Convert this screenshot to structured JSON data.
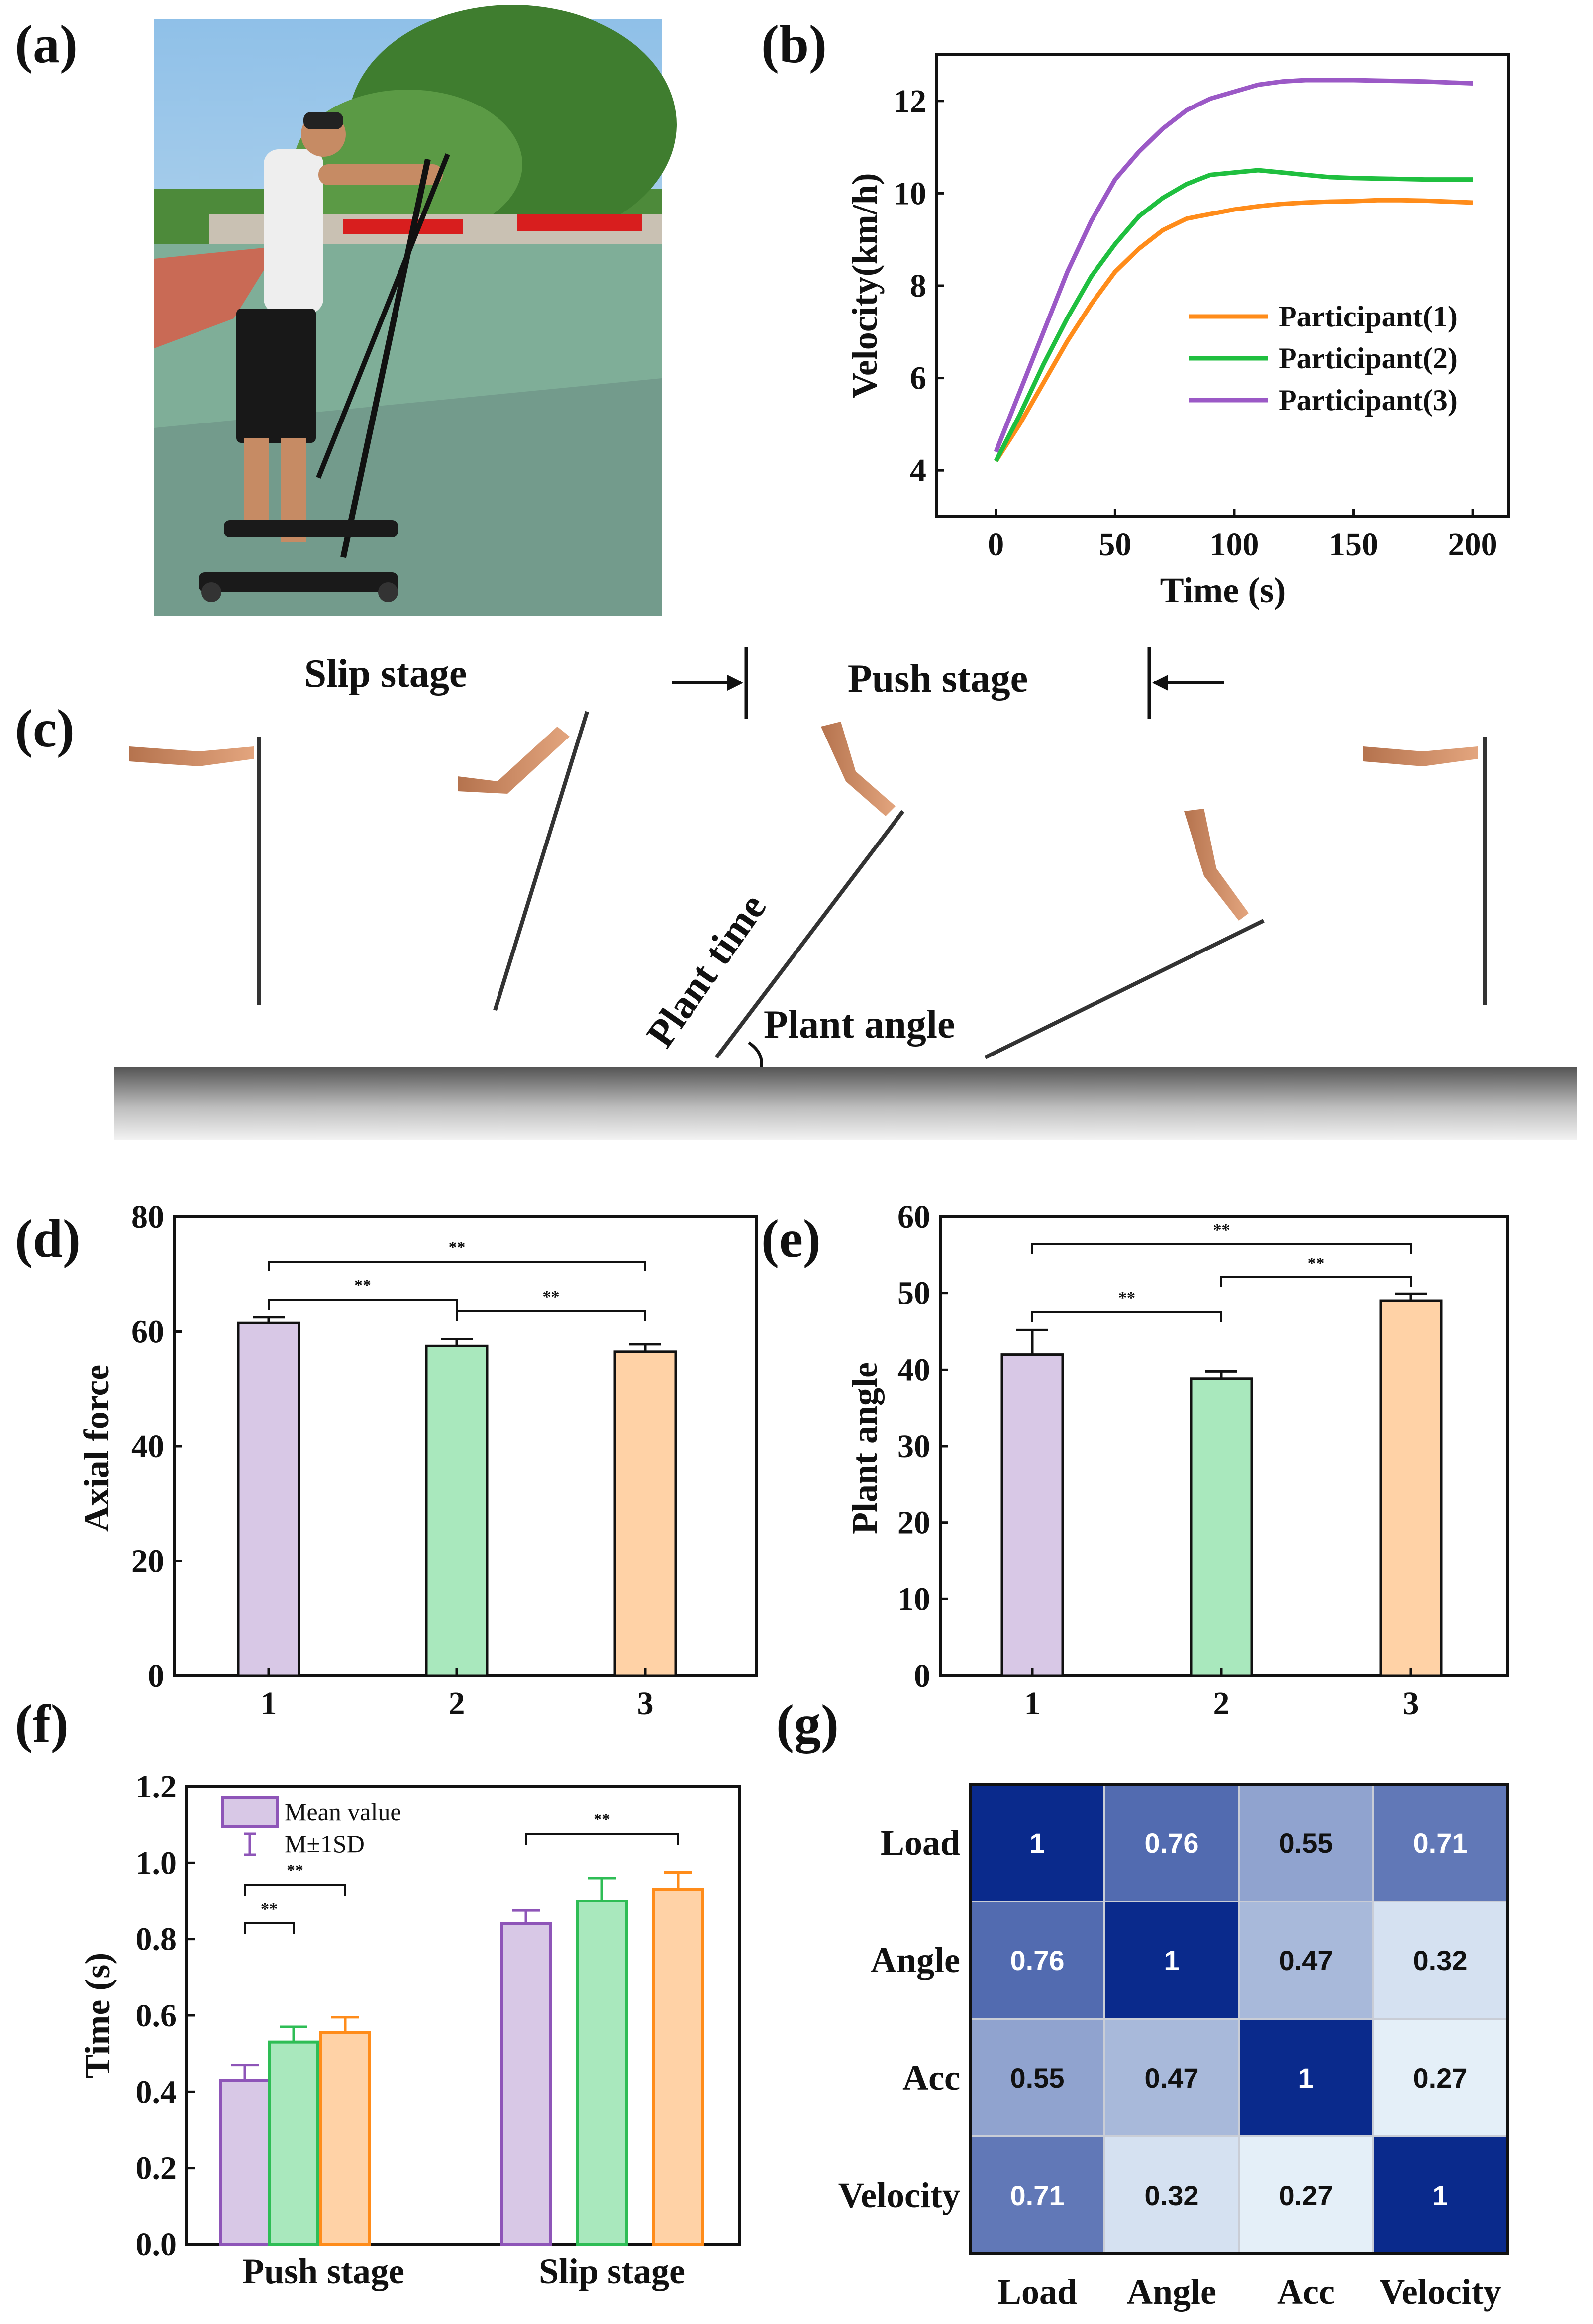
{
  "panels": {
    "a": "(a)",
    "b": "(b)",
    "c": "(c)",
    "d": "(d)",
    "e": "(e)",
    "f": "(f)",
    "g": "(g)"
  },
  "colors": {
    "p1": "#ff8c1a",
    "p2": "#1fbf3f",
    "p3": "#9b59c6",
    "bar1_fill": "#d8c8e6",
    "bar1_edge": "#8e55b8",
    "bar2_fill": "#a9e8bd",
    "bar2_edge": "#2ebd55",
    "bar3_fill": "#ffd2a6",
    "bar3_edge": "#ff8c1a",
    "heat_high": "#0a2a8c",
    "heat_low": "#eaf4fb"
  },
  "panel_c": {
    "slip_stage": "Slip stage",
    "push_stage": "Push stage",
    "plant_time": "Plant time",
    "plant_angle": "Plant angle"
  },
  "chart_data": [
    {
      "id": "b",
      "type": "line",
      "xlabel": "Time (s)",
      "ylabel": "Velocity(km/h)",
      "xlim": [
        -25,
        215
      ],
      "ylim": [
        3.0,
        13.0
      ],
      "xticks": [
        0,
        50,
        100,
        150,
        200
      ],
      "yticks": [
        4,
        6,
        8,
        10,
        12
      ],
      "legend_position": "center-right",
      "x": [
        0,
        10,
        20,
        30,
        40,
        50,
        60,
        70,
        80,
        90,
        100,
        110,
        120,
        130,
        140,
        150,
        160,
        170,
        180,
        190,
        200
      ],
      "series": [
        {
          "name": "Participant(1)",
          "color": "#ff8c1a",
          "values": [
            4.2,
            5.0,
            5.9,
            6.8,
            7.6,
            8.3,
            8.8,
            9.2,
            9.45,
            9.55,
            9.65,
            9.72,
            9.77,
            9.8,
            9.82,
            9.83,
            9.85,
            9.85,
            9.84,
            9.82,
            9.8
          ]
        },
        {
          "name": "Participant(2)",
          "color": "#1fbf3f",
          "values": [
            4.2,
            5.2,
            6.3,
            7.3,
            8.2,
            8.9,
            9.5,
            9.9,
            10.2,
            10.4,
            10.45,
            10.5,
            10.45,
            10.4,
            10.35,
            10.33,
            10.32,
            10.31,
            10.3,
            10.3,
            10.3
          ]
        },
        {
          "name": "Participant(3)",
          "color": "#9b59c6",
          "values": [
            4.4,
            5.7,
            7.0,
            8.3,
            9.4,
            10.3,
            10.9,
            11.4,
            11.8,
            12.05,
            12.2,
            12.35,
            12.42,
            12.45,
            12.45,
            12.45,
            12.44,
            12.43,
            12.42,
            12.4,
            12.38
          ]
        }
      ]
    },
    {
      "id": "d",
      "type": "bar",
      "ylabel": "Axial force",
      "ylim": [
        0,
        80
      ],
      "yticks": [
        0,
        20,
        40,
        60,
        80
      ],
      "categories": [
        "1",
        "2",
        "3"
      ],
      "values": [
        61.5,
        57.5,
        56.5
      ],
      "errors": [
        1.0,
        1.2,
        1.3
      ],
      "significance": [
        {
          "from": 0,
          "to": 2,
          "label": "**"
        },
        {
          "from": 0,
          "to": 1,
          "label": "**"
        },
        {
          "from": 1,
          "to": 2,
          "label": "**"
        }
      ]
    },
    {
      "id": "e",
      "type": "bar",
      "ylabel": "Plant angle",
      "ylim": [
        0,
        60
      ],
      "yticks": [
        0,
        10,
        20,
        30,
        40,
        50,
        60
      ],
      "categories": [
        "1",
        "2",
        "3"
      ],
      "values": [
        42,
        38.8,
        49
      ],
      "errors": [
        3.2,
        1.0,
        0.9
      ],
      "significance": [
        {
          "from": 0,
          "to": 2,
          "label": "**"
        },
        {
          "from": 1,
          "to": 2,
          "label": "**"
        },
        {
          "from": 0,
          "to": 1,
          "label": "**"
        }
      ]
    },
    {
      "id": "f",
      "type": "bar",
      "ylabel": "Time (s)",
      "ylim": [
        0.0,
        1.2
      ],
      "yticks": [
        0.0,
        0.2,
        0.4,
        0.6,
        0.8,
        1.0,
        1.2
      ],
      "categories": [
        "Push stage",
        "Slip stage"
      ],
      "series": [
        {
          "values": [
            0.43,
            0.84
          ],
          "errors": [
            0.04,
            0.035
          ]
        },
        {
          "values": [
            0.53,
            0.9
          ],
          "errors": [
            0.04,
            0.06
          ]
        },
        {
          "values": [
            0.555,
            0.93
          ],
          "errors": [
            0.04,
            0.045
          ]
        }
      ],
      "legend": {
        "mean": "Mean value",
        "sd": "M±1SD",
        "position": "top-left"
      },
      "significance": [
        {
          "group": 0,
          "from": 0,
          "to": 2,
          "label": "**"
        },
        {
          "group": 0,
          "from": 0,
          "to": 1,
          "label": "**"
        },
        {
          "group": 1,
          "from": 0,
          "to": 2,
          "label": "**"
        }
      ]
    },
    {
      "id": "g",
      "type": "heatmap",
      "labels": [
        "Load",
        "Angle",
        "Acc",
        "Velocity"
      ],
      "matrix": [
        [
          1,
          0.76,
          0.55,
          0.71
        ],
        [
          0.76,
          1,
          0.47,
          0.32
        ],
        [
          0.55,
          0.47,
          1,
          0.27
        ],
        [
          0.71,
          0.32,
          0.27,
          1
        ]
      ],
      "display": [
        [
          "1",
          "0.76",
          "0.55",
          "0.71"
        ],
        [
          "0.76",
          "1",
          "0.47",
          "0.32"
        ],
        [
          "0.55",
          "0.47",
          "1",
          "0.27"
        ],
        [
          "0.71",
          "0.32",
          "0.27",
          "1"
        ]
      ]
    }
  ]
}
